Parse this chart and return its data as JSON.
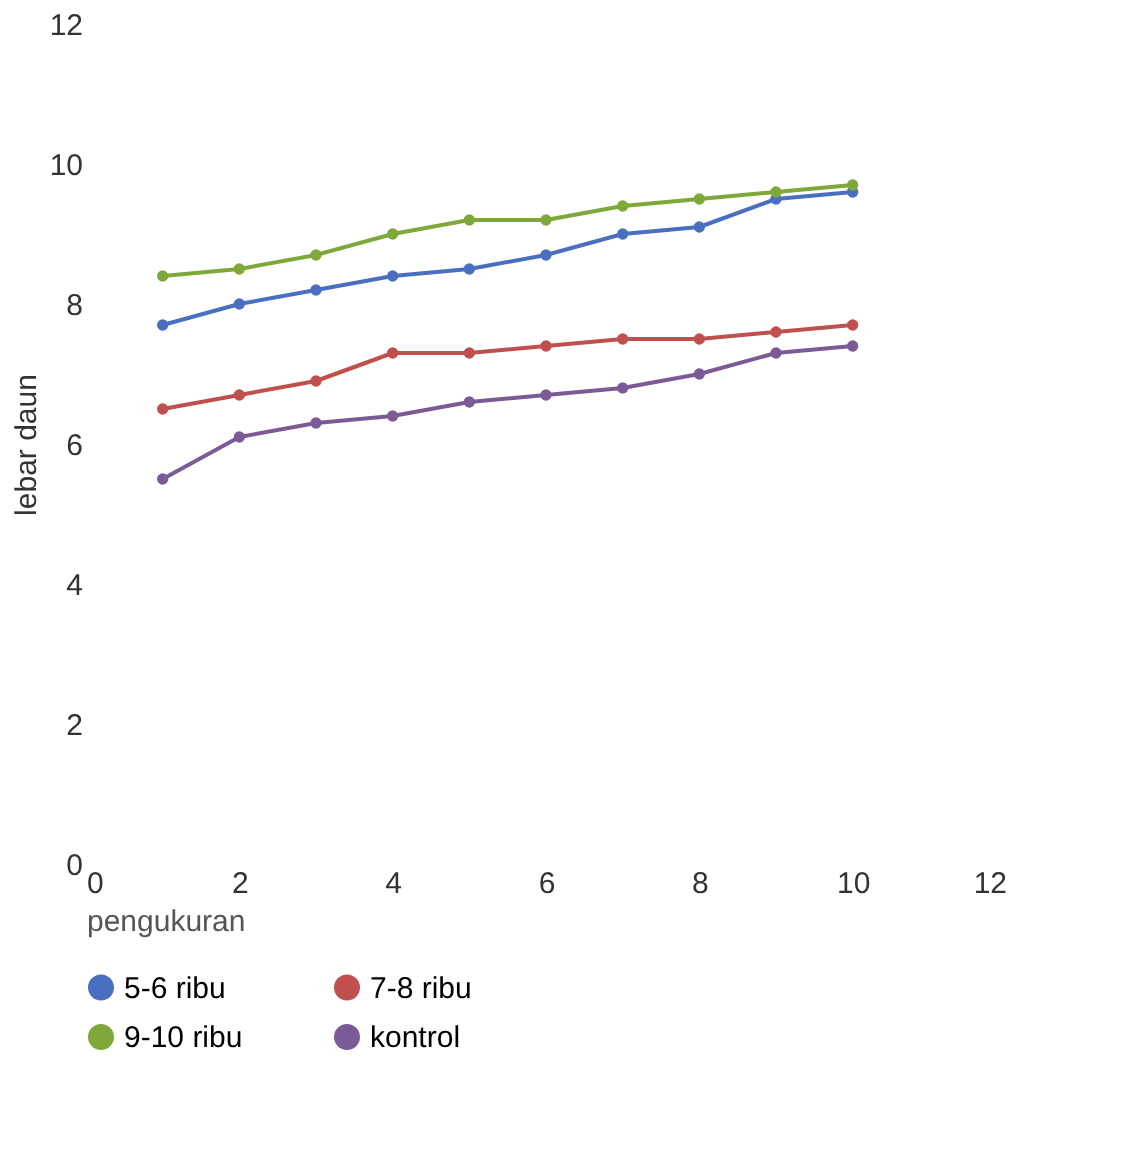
{
  "chart_data": {
    "type": "line",
    "xlabel": "pengukuran",
    "ylabel": "lebar daun",
    "x": [
      1,
      2,
      3,
      4,
      5,
      6,
      7,
      8,
      9,
      10
    ],
    "series": [
      {
        "name": "5-6 ribu",
        "color": "#4a6fc0",
        "values": [
          7.7,
          8.0,
          8.2,
          8.4,
          8.5,
          8.7,
          9.0,
          9.1,
          9.5,
          9.6
        ]
      },
      {
        "name": "7-8 ribu",
        "color": "#c0504d",
        "values": [
          6.5,
          6.7,
          6.9,
          7.3,
          7.3,
          7.4,
          7.5,
          7.5,
          7.6,
          7.7
        ]
      },
      {
        "name": "9-10 ribu",
        "color": "#7fa83a",
        "values": [
          8.4,
          8.5,
          8.7,
          9.0,
          9.2,
          9.2,
          9.4,
          9.5,
          9.6,
          9.7
        ]
      },
      {
        "name": "kontrol",
        "color": "#7b5a96",
        "values": [
          5.5,
          6.1,
          6.3,
          6.4,
          6.6,
          6.7,
          6.8,
          7.0,
          7.3,
          7.4
        ]
      }
    ],
    "xlim": [
      0,
      12
    ],
    "xticks": [
      0,
      2,
      4,
      6,
      8,
      10,
      12
    ],
    "ylim": [
      0,
      12
    ],
    "yticks": [
      0,
      2,
      4,
      6,
      8,
      10,
      12
    ],
    "grid": false,
    "legend": "bottom",
    "marker": "circle",
    "line_style": "solid"
  }
}
